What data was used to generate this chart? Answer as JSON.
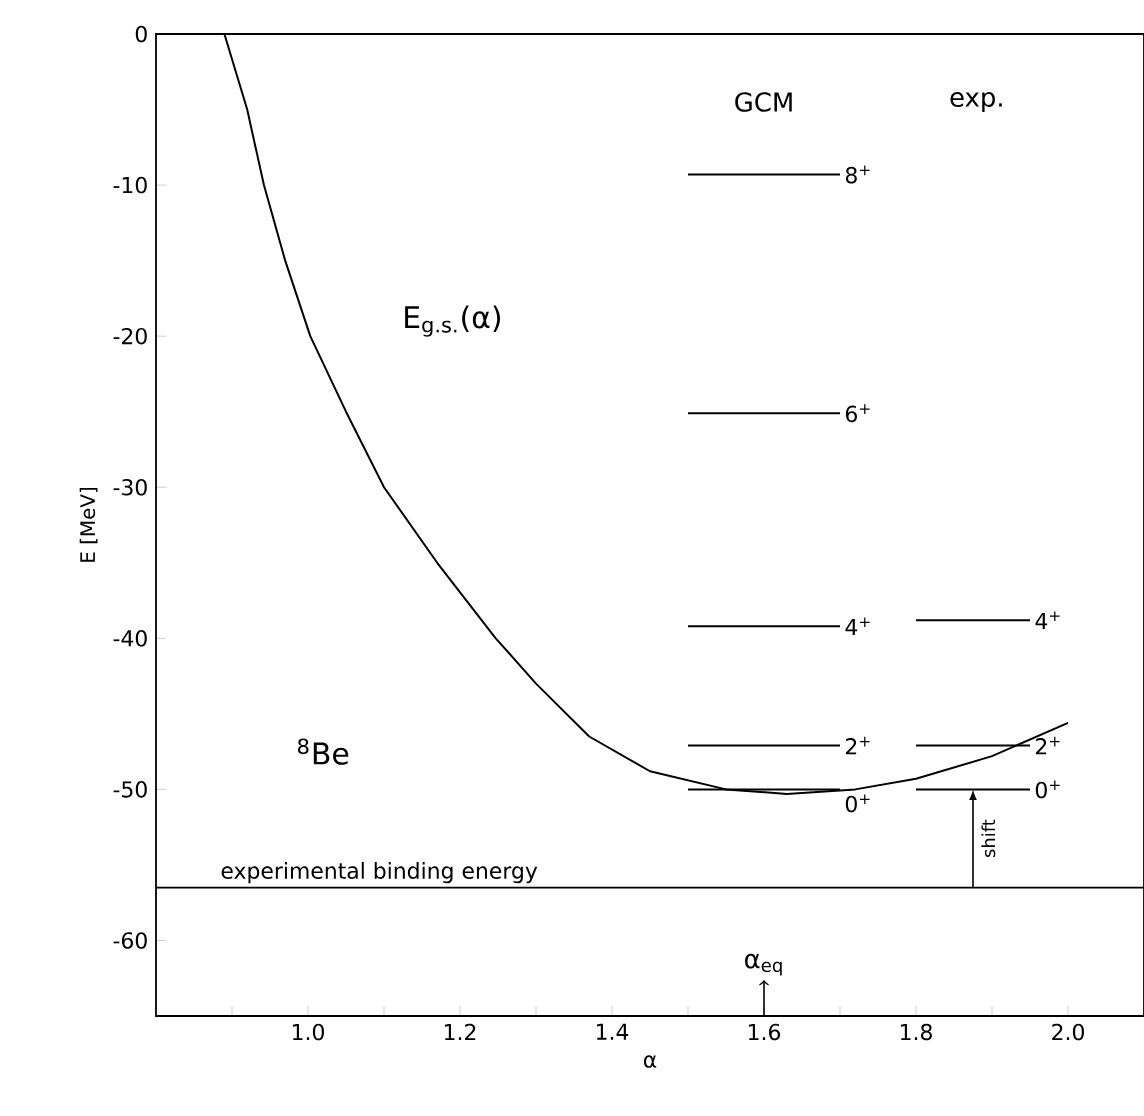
{
  "chart_data": {
    "type": "line",
    "xlabel": "α",
    "ylabel": "E [MeV]",
    "xlim": [
      0.8,
      2.1
    ],
    "ylim": [
      -65,
      0
    ],
    "xticks": [
      {
        "value": 0.9,
        "label": null
      },
      {
        "value": 1.0,
        "label": "1.0"
      },
      {
        "value": 1.1,
        "label": null
      },
      1.2,
      {
        "value": 1.3,
        "label": null
      },
      1.4,
      {
        "value": 1.5,
        "label": null
      },
      1.6,
      {
        "value": 1.7,
        "label": null
      },
      1.8,
      {
        "value": 1.9,
        "label": null
      },
      {
        "value": 2.0,
        "label": "2.0"
      }
    ],
    "yticks": [
      0,
      -10,
      -20,
      -30,
      -40,
      -50,
      -60
    ],
    "series": [
      {
        "color": "#000000",
        "x": [
          0.89,
          0.92,
          0.942,
          0.97,
          1.003,
          1.05,
          1.1,
          1.17,
          1.247,
          1.3,
          1.37,
          1.45,
          1.55,
          1.63,
          1.72,
          1.8,
          1.9,
          2.0
        ],
        "values": [
          0,
          -5,
          -10,
          -15,
          -20,
          -25,
          -30,
          -35,
          -40,
          -43,
          -46.5,
          -48.8,
          -50.0,
          -50.3,
          -50.0,
          -49.3,
          -47.8,
          -45.6
        ]
      },
      {
        "name": "8$^{+}$",
        "color": "#000000",
        "x": [
          1.5,
          1.7
        ],
        "values": [
          -9.3,
          -9.3
        ]
      },
      {
        "name": "6$^{+}$",
        "color": "#000000",
        "x": [
          1.5,
          1.7
        ],
        "values": [
          -25.1,
          -25.1
        ]
      },
      {
        "name": "4$^{+}$",
        "color": "#000000",
        "x": [
          1.5,
          1.7
        ],
        "values": [
          -39.2,
          -39.2
        ]
      },
      {
        "name": "2$^{+}$",
        "color": "#000000",
        "x": [
          1.5,
          1.7
        ],
        "values": [
          -47.1,
          -47.1
        ]
      },
      {
        "name": "0$^{+}$",
        "color": "#000000",
        "x": [
          1.5,
          1.7
        ],
        "values": [
          -50.0,
          -50.0
        ]
      },
      {
        "name": "4$^{+}$",
        "color": "#000000",
        "x": [
          1.8,
          1.95
        ],
        "values": [
          -38.8,
          -38.8
        ]
      },
      {
        "name": "2$^{+}$",
        "color": "#000000",
        "x": [
          1.8,
          1.95
        ],
        "values": [
          -47.1,
          -47.1
        ]
      },
      {
        "name": "0$^{+}$",
        "color": "#000000",
        "x": [
          1.8,
          1.95
        ],
        "values": [
          -50.0,
          -50.0
        ]
      }
    ],
    "ref_lines": [
      {
        "axis": "y",
        "value": -56.5,
        "label": "experimental binding energy",
        "color": "#000000"
      }
    ],
    "annotations": [
      "GCM",
      "exp.",
      "E$_{g.s.}$(α)",
      "$^{8}$Be",
      {
        "text": "shift",
        "x": 1.875,
        "y": -56.5
      },
      "α$_{eq}$"
    ]
  }
}
